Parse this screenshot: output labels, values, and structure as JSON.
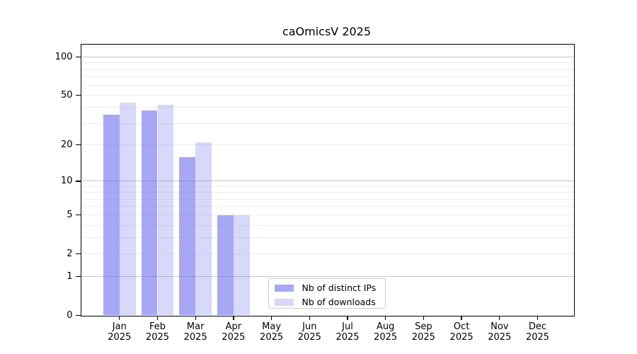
{
  "chart_data": {
    "type": "bar",
    "title": "caOmicsV 2025",
    "year": "2025",
    "categories": [
      "Jan",
      "Feb",
      "Mar",
      "Apr",
      "May",
      "Jun",
      "Jul",
      "Aug",
      "Sep",
      "Oct",
      "Nov",
      "Dec"
    ],
    "series": [
      {
        "name": "Nb of distinct IPs",
        "color": "rgba(120,120,240,0.65)",
        "values": [
          35,
          38,
          16,
          5,
          0,
          0,
          0,
          0,
          0,
          0,
          0,
          0
        ]
      },
      {
        "name": "Nb of downloads",
        "color": "rgba(120,120,240,0.29)",
        "values": [
          44,
          42,
          21,
          5,
          0,
          0,
          0,
          0,
          0,
          0,
          0,
          0
        ]
      }
    ],
    "yscale": "log(1+y)",
    "ylim": [
      0,
      127
    ],
    "ylim_log_max": 2.104,
    "yticks": [
      0,
      1,
      2,
      5,
      10,
      20,
      50,
      100
    ],
    "major_gridlines": [
      1,
      10,
      100
    ],
    "minor_gridlines": [
      2,
      3,
      4,
      5,
      6,
      7,
      8,
      9,
      20,
      30,
      40,
      50,
      60,
      70,
      80,
      90,
      120
    ],
    "grid": true,
    "legend_position": "bottom-center",
    "colors": {
      "bar_main": "rgba(120,120,240,0.65)",
      "bar_light": "rgba(120,120,240,0.29)",
      "major_grid": "#c6c6c6",
      "minor_grid": "#ededed",
      "axis": "#000000",
      "text": "#000000",
      "legend_border": "#cccccc"
    }
  }
}
